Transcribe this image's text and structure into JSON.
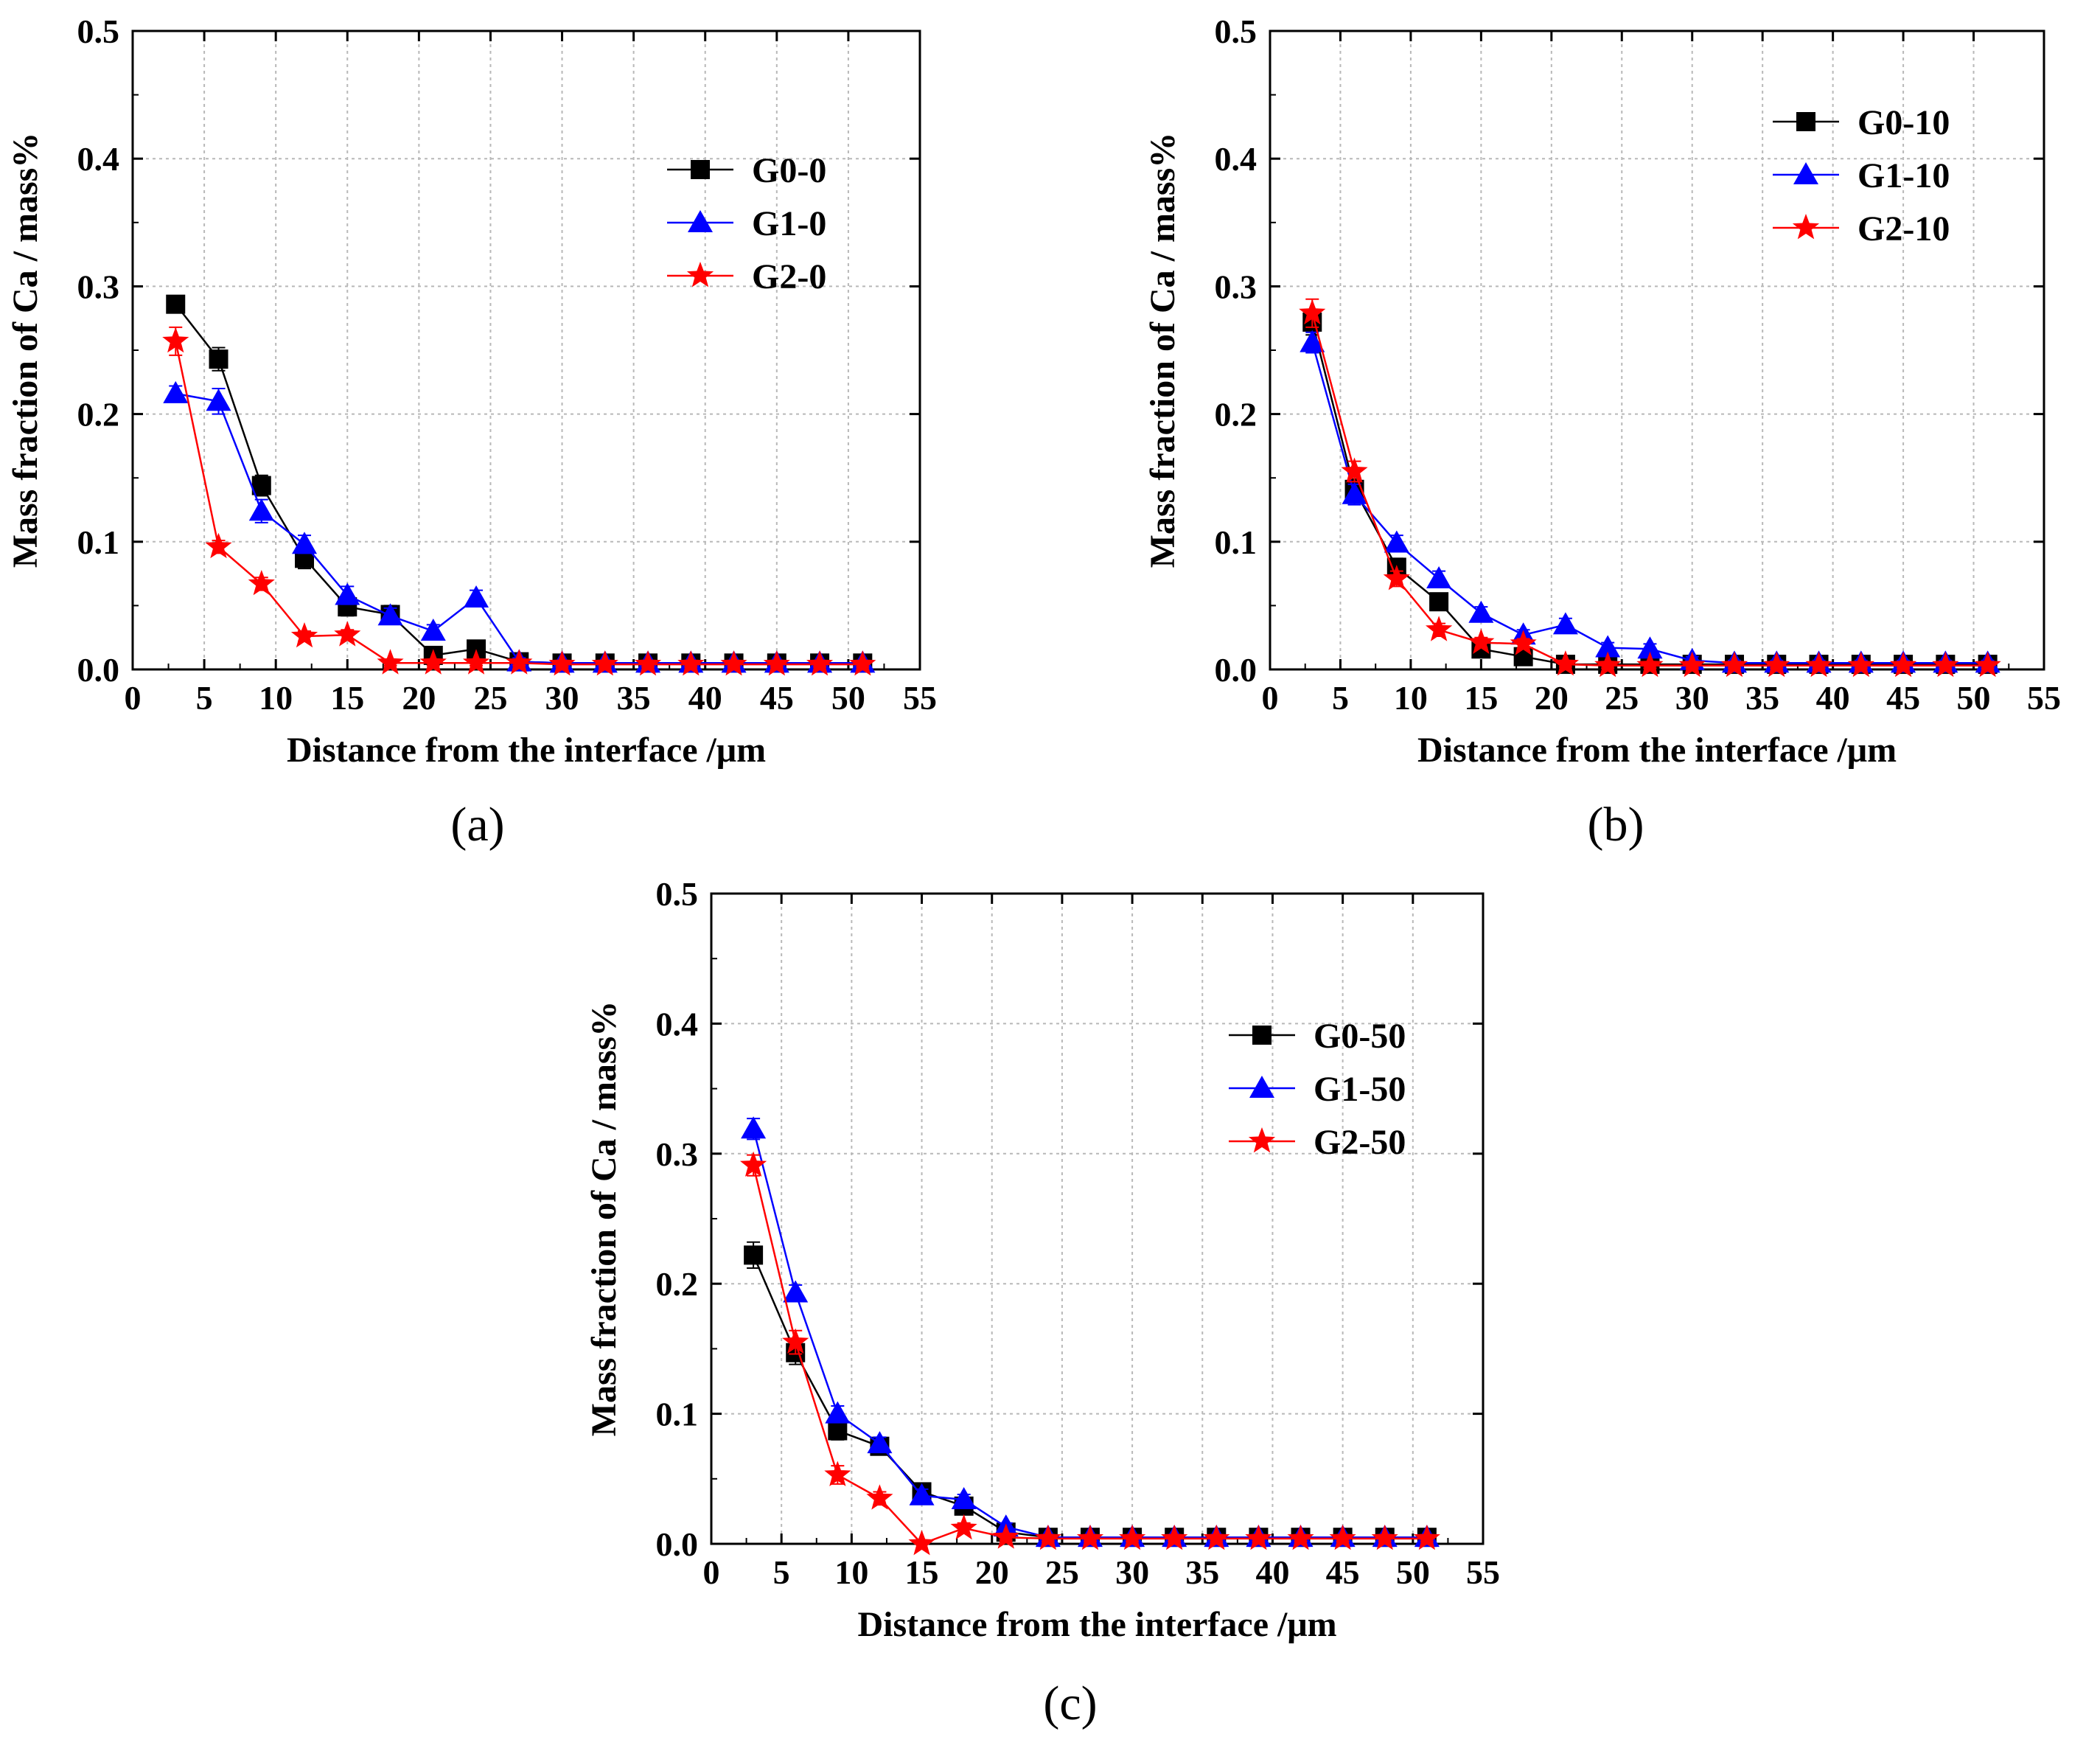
{
  "chart_data": [
    {
      "type": "line",
      "panel_label": "(a)",
      "xlabel": "Distance from the interface /μm",
      "ylabel": "Mass fraction of Ca / mass%",
      "xlim": [
        0,
        55
      ],
      "ylim": [
        0,
        0.5
      ],
      "xticks": [
        0,
        5,
        10,
        15,
        20,
        25,
        30,
        35,
        40,
        45,
        50,
        55
      ],
      "yticks": [
        "0.0",
        "0.1",
        "0.2",
        "0.3",
        "0.4",
        "0.5"
      ],
      "grid": true,
      "legend_position": "upper-right",
      "x": [
        3,
        6,
        9,
        12,
        15,
        18,
        21,
        24,
        27,
        30,
        33,
        36,
        39,
        42,
        45,
        48,
        51
      ],
      "series": [
        {
          "name": "G0-0",
          "marker": "square",
          "color": "#000000",
          "values": [
            0.286,
            0.243,
            0.144,
            0.087,
            0.049,
            0.043,
            0.011,
            0.016,
            0.006,
            0.005,
            0.005,
            0.005,
            0.005,
            0.005,
            0.005,
            0.005,
            0.005
          ],
          "errors": [
            0.006,
            0.009,
            0.008,
            0.008,
            0.007,
            0.007,
            0.005,
            0.005,
            0.004,
            0.002,
            0.002,
            0.002,
            0.002,
            0.002,
            0.002,
            0.002,
            0.002
          ]
        },
        {
          "name": "G1-0",
          "marker": "triangle",
          "color": "#0000ff",
          "values": [
            0.216,
            0.21,
            0.124,
            0.098,
            0.058,
            0.042,
            0.03,
            0.056,
            0.006,
            0.005,
            0.005,
            0.005,
            0.005,
            0.005,
            0.005,
            0.005,
            0.005
          ],
          "errors": [
            0.006,
            0.01,
            0.009,
            0.007,
            0.007,
            0.006,
            0.005,
            0.006,
            0.003,
            0.002,
            0.002,
            0.002,
            0.002,
            0.002,
            0.002,
            0.002,
            0.002
          ]
        },
        {
          "name": "G2-0",
          "marker": "star",
          "color": "#ff0000",
          "values": [
            0.257,
            0.096,
            0.067,
            0.026,
            0.027,
            0.005,
            0.005,
            0.005,
            0.005,
            0.004,
            0.004,
            0.004,
            0.004,
            0.004,
            0.004,
            0.004,
            0.004
          ],
          "errors": [
            0.011,
            0.005,
            0.005,
            0.004,
            0.004,
            0.002,
            0.002,
            0.002,
            0.002,
            0.002,
            0.002,
            0.002,
            0.002,
            0.002,
            0.002,
            0.002,
            0.002
          ]
        }
      ]
    },
    {
      "type": "line",
      "panel_label": "(b)",
      "xlabel": "Distance from the interface /μm",
      "ylabel": "Mass fraction of Ca / mass%",
      "xlim": [
        0,
        55
      ],
      "ylim": [
        0,
        0.5
      ],
      "xticks": [
        0,
        5,
        10,
        15,
        20,
        25,
        30,
        35,
        40,
        45,
        50,
        55
      ],
      "yticks": [
        "0.0",
        "0.1",
        "0.2",
        "0.3",
        "0.4",
        "0.5"
      ],
      "grid": true,
      "legend_position": "upper-right",
      "x": [
        3,
        6,
        9,
        12,
        15,
        18,
        21,
        24,
        27,
        30,
        33,
        36,
        39,
        42,
        45,
        48,
        51
      ],
      "series": [
        {
          "name": "G0-10",
          "marker": "square",
          "color": "#000000",
          "values": [
            0.272,
            0.141,
            0.08,
            0.053,
            0.016,
            0.01,
            0.004,
            0.004,
            0.004,
            0.004,
            0.004,
            0.004,
            0.004,
            0.004,
            0.004,
            0.004,
            0.004
          ],
          "errors": [
            0.01,
            0.008,
            0.007,
            0.006,
            0.006,
            0.004,
            0.002,
            0.002,
            0.002,
            0.002,
            0.002,
            0.002,
            0.002,
            0.002,
            0.002,
            0.002,
            0.002
          ]
        },
        {
          "name": "G1-10",
          "marker": "triangle",
          "color": "#0000ff",
          "values": [
            0.256,
            0.137,
            0.099,
            0.071,
            0.044,
            0.027,
            0.035,
            0.017,
            0.016,
            0.007,
            0.005,
            0.005,
            0.005,
            0.005,
            0.005,
            0.005,
            0.005
          ],
          "errors": [
            0.008,
            0.008,
            0.006,
            0.006,
            0.005,
            0.004,
            0.005,
            0.004,
            0.004,
            0.003,
            0.002,
            0.002,
            0.002,
            0.002,
            0.002,
            0.002,
            0.002
          ]
        },
        {
          "name": "G2-10",
          "marker": "star",
          "color": "#ff0000",
          "values": [
            0.279,
            0.155,
            0.071,
            0.031,
            0.021,
            0.02,
            0.004,
            0.003,
            0.003,
            0.003,
            0.003,
            0.003,
            0.003,
            0.003,
            0.003,
            0.003,
            0.003
          ],
          "errors": [
            0.011,
            0.008,
            0.006,
            0.005,
            0.004,
            0.004,
            0.002,
            0.002,
            0.002,
            0.002,
            0.002,
            0.002,
            0.002,
            0.002,
            0.002,
            0.002,
            0.002
          ]
        }
      ]
    },
    {
      "type": "line",
      "panel_label": "(c)",
      "xlabel": "Distance from the interface /μm",
      "ylabel": "Mass fraction of Ca / mass%",
      "xlim": [
        0,
        55
      ],
      "ylim": [
        0,
        0.5
      ],
      "xticks": [
        0,
        5,
        10,
        15,
        20,
        25,
        30,
        35,
        40,
        45,
        50,
        55
      ],
      "yticks": [
        "0.0",
        "0.1",
        "0.2",
        "0.3",
        "0.4",
        "0.5"
      ],
      "grid": true,
      "legend_position": "center-right",
      "x": [
        3,
        6,
        9,
        12,
        15,
        18,
        21,
        24,
        27,
        30,
        33,
        36,
        39,
        42,
        45,
        48,
        51
      ],
      "series": [
        {
          "name": "G0-50",
          "marker": "square",
          "color": "#000000",
          "values": [
            0.222,
            0.147,
            0.087,
            0.075,
            0.04,
            0.029,
            0.009,
            0.005,
            0.005,
            0.005,
            0.005,
            0.005,
            0.005,
            0.005,
            0.005,
            0.005,
            0.005
          ],
          "errors": [
            0.01,
            0.009,
            0.007,
            0.006,
            0.006,
            0.005,
            0.004,
            0.002,
            0.002,
            0.002,
            0.002,
            0.002,
            0.002,
            0.002,
            0.002,
            0.002,
            0.002
          ]
        },
        {
          "name": "G1-50",
          "marker": "triangle",
          "color": "#0000ff",
          "values": [
            0.319,
            0.193,
            0.1,
            0.077,
            0.037,
            0.034,
            0.013,
            0.005,
            0.005,
            0.005,
            0.005,
            0.005,
            0.005,
            0.005,
            0.005,
            0.005,
            0.005
          ],
          "errors": [
            0.008,
            0.006,
            0.006,
            0.005,
            0.005,
            0.004,
            0.003,
            0.002,
            0.002,
            0.002,
            0.002,
            0.002,
            0.002,
            0.002,
            0.002,
            0.002,
            0.002
          ]
        },
        {
          "name": "G2-50",
          "marker": "star",
          "color": "#ff0000",
          "values": [
            0.291,
            0.155,
            0.053,
            0.035,
            0.0,
            0.012,
            0.005,
            0.004,
            0.004,
            0.004,
            0.004,
            0.004,
            0.004,
            0.004,
            0.004,
            0.004,
            0.004
          ],
          "errors": [
            0.008,
            0.009,
            0.007,
            0.005,
            0.002,
            0.004,
            0.002,
            0.002,
            0.002,
            0.002,
            0.002,
            0.002,
            0.002,
            0.002,
            0.002,
            0.002,
            0.002
          ]
        }
      ]
    }
  ]
}
